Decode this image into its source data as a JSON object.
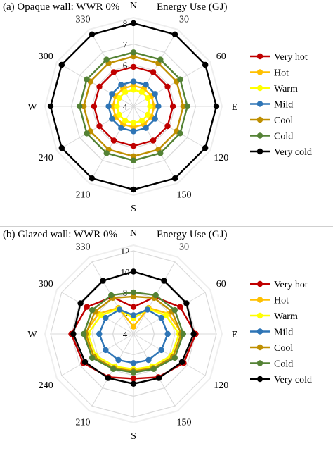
{
  "colors": {
    "Very hot": "#c00000",
    "Hot": "#ffc000",
    "Warm": "#ffff00",
    "Mild": "#2e75b6",
    "Cool": "#bf8f00",
    "Cold": "#548235",
    "Very cold": "#000000",
    "grid": "#d9d9d9"
  },
  "chart_data": [
    {
      "type": "radar",
      "panel_label": "(a) Opaque wall: WWR 0%",
      "ylabel": "Energy Use (GJ)",
      "categories": [
        "N",
        "30",
        "60",
        "E",
        "120",
        "150",
        "S",
        "210",
        "240",
        "W",
        "300",
        "330"
      ],
      "radial_ticks": [
        "4",
        "5",
        "6",
        "7",
        "8"
      ],
      "rlim": [
        4,
        8
      ],
      "legend_position": "right",
      "series": [
        {
          "name": "Very hot",
          "values": [
            5.9,
            5.9,
            5.9,
            5.9,
            5.9,
            5.9,
            5.9,
            5.9,
            5.9,
            5.9,
            5.9,
            5.9
          ]
        },
        {
          "name": "Hot",
          "values": [
            5.0,
            5.0,
            5.0,
            5.0,
            5.0,
            5.0,
            5.0,
            5.0,
            5.0,
            5.0,
            5.0,
            5.0
          ]
        },
        {
          "name": "Warm",
          "values": [
            4.8,
            4.8,
            4.8,
            4.8,
            4.8,
            4.8,
            4.8,
            4.8,
            4.8,
            4.8,
            4.8,
            4.8
          ]
        },
        {
          "name": "Mild",
          "values": [
            5.2,
            5.2,
            5.2,
            5.2,
            5.2,
            5.2,
            5.2,
            5.2,
            5.2,
            5.2,
            5.2,
            5.2
          ]
        },
        {
          "name": "Cool",
          "values": [
            6.4,
            6.4,
            6.4,
            6.4,
            6.4,
            6.4,
            6.4,
            6.4,
            6.4,
            6.4,
            6.4,
            6.4
          ]
        },
        {
          "name": "Cold",
          "values": [
            6.6,
            6.6,
            6.6,
            6.6,
            6.6,
            6.6,
            6.6,
            6.6,
            6.6,
            6.6,
            6.6,
            6.6
          ]
        },
        {
          "name": "Very cold",
          "values": [
            8.0,
            8.0,
            8.0,
            8.0,
            8.0,
            8.0,
            8.0,
            8.0,
            8.0,
            8.0,
            8.0,
            8.0
          ]
        }
      ]
    },
    {
      "type": "radar",
      "panel_label": "(b) Glazed wall: WWR 0%",
      "ylabel": "Energy Use (GJ)",
      "categories": [
        "N",
        "30",
        "60",
        "E",
        "120",
        "150",
        "S",
        "210",
        "240",
        "W",
        "300",
        "330"
      ],
      "radial_ticks": [
        "4",
        "6",
        "8",
        "10",
        "12"
      ],
      "rlim": [
        4,
        12
      ],
      "legend_position": "right",
      "series": [
        {
          "name": "Very hot",
          "values": [
            6.6,
            8.1,
            9.2,
            10.0,
            9.6,
            8.8,
            8.3,
            8.8,
            9.6,
            10.0,
            9.2,
            8.1
          ]
        },
        {
          "name": "Hot",
          "values": [
            4.7,
            6.9,
            7.9,
            8.7,
            8.4,
            7.8,
            7.5,
            7.8,
            8.4,
            8.7,
            7.9,
            6.9
          ]
        },
        {
          "name": "Warm",
          "values": [
            5.5,
            6.8,
            7.6,
            8.4,
            8.2,
            7.6,
            7.4,
            7.6,
            8.2,
            8.4,
            7.6,
            6.8
          ]
        },
        {
          "name": "Mild",
          "values": [
            5.8,
            6.7,
            7.1,
            7.3,
            7.1,
            6.9,
            6.8,
            6.9,
            7.1,
            7.3,
            7.1,
            6.7
          ]
        },
        {
          "name": "Cool",
          "values": [
            7.6,
            8.0,
            8.3,
            8.6,
            8.4,
            7.8,
            7.6,
            7.8,
            8.4,
            8.6,
            8.3,
            8.0
          ]
        },
        {
          "name": "Cold",
          "values": [
            8.0,
            8.3,
            8.6,
            8.8,
            8.6,
            7.9,
            7.7,
            7.9,
            8.6,
            8.8,
            8.6,
            8.3
          ]
        },
        {
          "name": "Very cold",
          "values": [
            10.0,
            9.9,
            9.9,
            9.8,
            9.4,
            8.9,
            8.8,
            8.9,
            9.4,
            9.8,
            9.9,
            9.9
          ]
        }
      ]
    }
  ]
}
